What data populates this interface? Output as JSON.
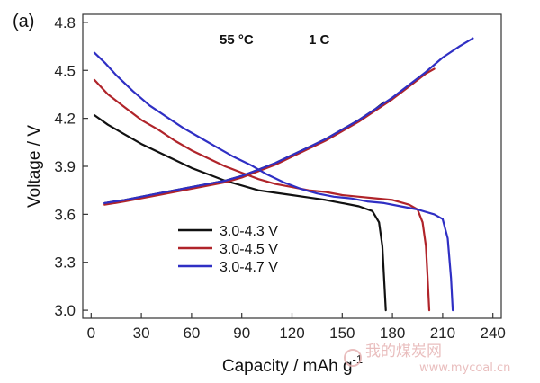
{
  "panel_label": "(a)",
  "condition": {
    "temperature": "55 °C",
    "rate": "1 C"
  },
  "watermark": {
    "line1": "我的煤炭网",
    "line2": "www.mycoal.cn"
  },
  "chart_data": {
    "type": "line",
    "title": "",
    "xlabel": "Capacity / mAh g",
    "xlabel_sup": "-1",
    "ylabel": "Voltage / V",
    "xlim": [
      -5,
      245
    ],
    "ylim": [
      2.95,
      4.85
    ],
    "xticks": [
      0,
      30,
      60,
      90,
      120,
      150,
      180,
      210,
      240
    ],
    "yticks": [
      "3.0",
      "3.3",
      "3.6",
      "3.9",
      "4.2",
      "4.5",
      "4.8"
    ],
    "legend_position": "lower-left",
    "series": [
      {
        "name": "3.0-4.3 V",
        "color": "#111111",
        "discharge": {
          "x": [
            2,
            10,
            20,
            30,
            40,
            50,
            60,
            70,
            80,
            90,
            100,
            110,
            120,
            130,
            140,
            150,
            160,
            168,
            172,
            174,
            175,
            176
          ],
          "y": [
            4.22,
            4.16,
            4.1,
            4.04,
            3.99,
            3.94,
            3.89,
            3.85,
            3.81,
            3.78,
            3.75,
            3.735,
            3.72,
            3.705,
            3.69,
            3.67,
            3.65,
            3.62,
            3.55,
            3.4,
            3.2,
            3.0
          ]
        },
        "charge": {
          "x": [
            8,
            20,
            40,
            60,
            80,
            90,
            100,
            110,
            120,
            130,
            140,
            150,
            160,
            170,
            175
          ],
          "y": [
            3.67,
            3.69,
            3.73,
            3.77,
            3.81,
            3.84,
            3.88,
            3.92,
            3.97,
            4.02,
            4.07,
            4.13,
            4.19,
            4.26,
            4.3
          ]
        }
      },
      {
        "name": "3.0-4.5 V",
        "color": "#b0242a",
        "discharge": {
          "x": [
            2,
            10,
            20,
            30,
            40,
            50,
            60,
            70,
            80,
            90,
            100,
            110,
            120,
            130,
            140,
            150,
            160,
            170,
            180,
            190,
            195,
            198,
            200,
            201,
            202
          ],
          "y": [
            4.44,
            4.35,
            4.27,
            4.19,
            4.13,
            4.06,
            4.0,
            3.95,
            3.9,
            3.86,
            3.82,
            3.79,
            3.77,
            3.75,
            3.74,
            3.72,
            3.71,
            3.7,
            3.69,
            3.66,
            3.63,
            3.55,
            3.4,
            3.2,
            3.0
          ]
        },
        "charge": {
          "x": [
            8,
            20,
            40,
            60,
            80,
            90,
            100,
            110,
            120,
            130,
            140,
            150,
            160,
            170,
            180,
            190,
            200,
            205
          ],
          "y": [
            3.66,
            3.68,
            3.72,
            3.76,
            3.8,
            3.83,
            3.87,
            3.91,
            3.96,
            4.01,
            4.06,
            4.12,
            4.18,
            4.25,
            4.32,
            4.4,
            4.48,
            4.51
          ]
        }
      },
      {
        "name": "3.0-4.7 V",
        "color": "#2f2fc4",
        "discharge": {
          "x": [
            2,
            8,
            15,
            25,
            35,
            45,
            55,
            65,
            75,
            85,
            95,
            105,
            115,
            125,
            135,
            145,
            155,
            165,
            175,
            185,
            195,
            205,
            210,
            213,
            215,
            216
          ],
          "y": [
            4.61,
            4.55,
            4.47,
            4.37,
            4.28,
            4.21,
            4.14,
            4.08,
            4.02,
            3.96,
            3.91,
            3.85,
            3.8,
            3.76,
            3.73,
            3.71,
            3.7,
            3.68,
            3.67,
            3.65,
            3.63,
            3.6,
            3.57,
            3.45,
            3.2,
            3.0
          ]
        },
        "charge": {
          "x": [
            8,
            20,
            40,
            60,
            80,
            90,
            100,
            110,
            120,
            130,
            140,
            150,
            160,
            170,
            180,
            190,
            200,
            210,
            220,
            228
          ],
          "y": [
            3.67,
            3.69,
            3.73,
            3.77,
            3.81,
            3.84,
            3.88,
            3.92,
            3.97,
            4.02,
            4.07,
            4.13,
            4.19,
            4.26,
            4.33,
            4.41,
            4.49,
            4.58,
            4.65,
            4.7
          ]
        }
      }
    ]
  }
}
